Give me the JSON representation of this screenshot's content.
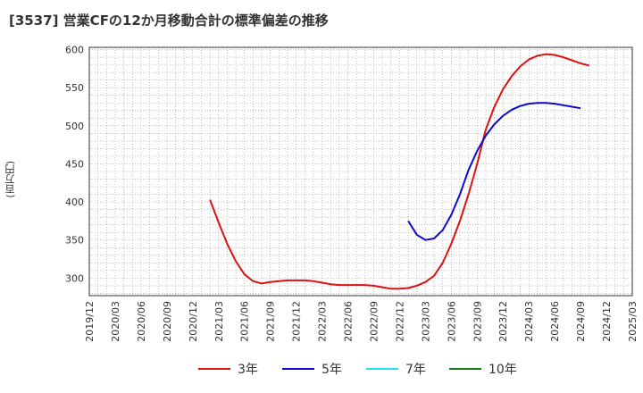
{
  "title": "[3537]  営業CFの12か月移動合計の標準偏差の推移",
  "ylabel": "(百万円)",
  "colors": {
    "3y": "#dd1111",
    "5y": "#0a0ad0",
    "7y": "#22e0ee",
    "10y": "#1a7a1a",
    "grid": "#999999"
  },
  "legend": [
    {
      "key": "3y",
      "label": "3年"
    },
    {
      "key": "5y",
      "label": "5年"
    },
    {
      "key": "7y",
      "label": "7年"
    },
    {
      "key": "10y",
      "label": "10年"
    }
  ],
  "chart_data": {
    "type": "line",
    "ylim": [
      277,
      603
    ],
    "yticks": [
      300,
      350,
      400,
      450,
      500,
      550,
      600
    ],
    "xlim": [
      "2019-12",
      "2025-03"
    ],
    "xticks": [
      "2019/12",
      "2020/03",
      "2020/06",
      "2020/09",
      "2020/12",
      "2021/03",
      "2021/06",
      "2021/09",
      "2021/12",
      "2022/03",
      "2022/06",
      "2022/09",
      "2022/12",
      "2023/03",
      "2023/06",
      "2023/09",
      "2023/12",
      "2024/03",
      "2024/06",
      "2024/09",
      "2024/12",
      "2025/03"
    ],
    "grid": true,
    "legend_position": "bottom",
    "series": [
      {
        "name": "3年",
        "key": "3y",
        "points": [
          [
            "2021-02",
            403
          ],
          [
            "2021-03",
            373
          ],
          [
            "2021-04",
            345
          ],
          [
            "2021-05",
            322
          ],
          [
            "2021-06",
            305
          ],
          [
            "2021-07",
            296
          ],
          [
            "2021-08",
            293
          ],
          [
            "2021-09",
            295
          ],
          [
            "2021-10",
            296
          ],
          [
            "2021-11",
            297
          ],
          [
            "2021-12",
            297
          ],
          [
            "2022-01",
            297
          ],
          [
            "2022-02",
            296
          ],
          [
            "2022-03",
            294
          ],
          [
            "2022-04",
            292
          ],
          [
            "2022-05",
            291
          ],
          [
            "2022-06",
            291
          ],
          [
            "2022-07",
            291
          ],
          [
            "2022-08",
            291
          ],
          [
            "2022-09",
            290
          ],
          [
            "2022-10",
            288
          ],
          [
            "2022-11",
            286
          ],
          [
            "2022-12",
            286
          ],
          [
            "2023-01",
            287
          ],
          [
            "2023-02",
            290
          ],
          [
            "2023-03",
            295
          ],
          [
            "2023-04",
            303
          ],
          [
            "2023-05",
            320
          ],
          [
            "2023-06",
            345
          ],
          [
            "2023-07",
            375
          ],
          [
            "2023-08",
            410
          ],
          [
            "2023-09",
            450
          ],
          [
            "2023-10",
            495
          ],
          [
            "2023-11",
            525
          ],
          [
            "2023-12",
            548
          ],
          [
            "2024-01",
            565
          ],
          [
            "2024-02",
            578
          ],
          [
            "2024-03",
            587
          ],
          [
            "2024-04",
            592
          ],
          [
            "2024-05",
            594
          ],
          [
            "2024-06",
            593
          ],
          [
            "2024-07",
            590
          ],
          [
            "2024-08",
            586
          ],
          [
            "2024-09",
            582
          ],
          [
            "2024-10",
            579
          ]
        ]
      },
      {
        "name": "5年",
        "key": "5y",
        "points": [
          [
            "2023-01",
            375
          ],
          [
            "2023-02",
            357
          ],
          [
            "2023-03",
            350
          ],
          [
            "2023-04",
            352
          ],
          [
            "2023-05",
            363
          ],
          [
            "2023-06",
            383
          ],
          [
            "2023-07",
            410
          ],
          [
            "2023-08",
            442
          ],
          [
            "2023-09",
            467
          ],
          [
            "2023-10",
            487
          ],
          [
            "2023-11",
            502
          ],
          [
            "2023-12",
            513
          ],
          [
            "2024-01",
            521
          ],
          [
            "2024-02",
            526
          ],
          [
            "2024-03",
            529
          ],
          [
            "2024-04",
            530
          ],
          [
            "2024-05",
            530
          ],
          [
            "2024-06",
            529
          ],
          [
            "2024-07",
            527
          ],
          [
            "2024-08",
            525
          ],
          [
            "2024-09",
            523
          ]
        ]
      },
      {
        "name": "7年",
        "key": "7y",
        "points": []
      },
      {
        "name": "10年",
        "key": "10y",
        "points": []
      }
    ]
  }
}
